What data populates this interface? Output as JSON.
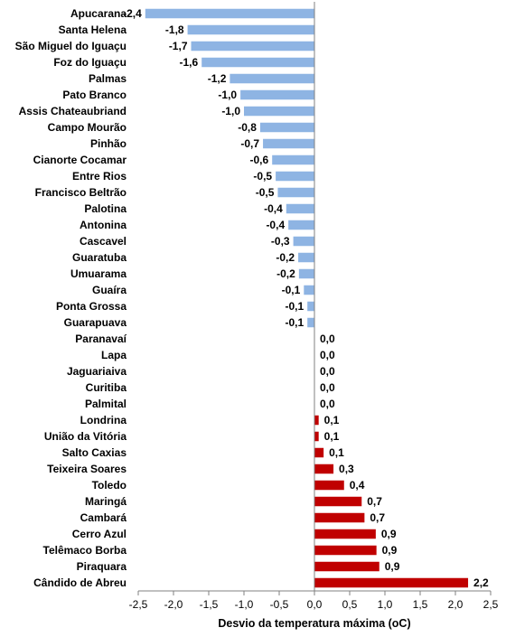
{
  "chart_data": {
    "type": "bar",
    "orientation": "horizontal",
    "xlabel": "Desvio da temperatura máxima (oC)",
    "xlim": [
      -2.5,
      2.5
    ],
    "xticks": [
      "-2,5",
      "-2,0",
      "-1,5",
      "-1,0",
      "-0,5",
      "0,0",
      "0,5",
      "1,0",
      "1,5",
      "2,0",
      "2,5"
    ],
    "grid": false,
    "legend": false,
    "colors": {
      "negative": "#8eb4e3",
      "positive": "#c00000"
    },
    "categories": [
      "Apucarana",
      "Santa Helena",
      "São Miguel do Iguaçu",
      "Foz do Iguaçu",
      "Palmas",
      "Pato Branco",
      "Assis Chateaubriand",
      "Campo Mourão",
      "Pinhão",
      "Cianorte Cocamar",
      "Entre Rios",
      "Francisco Beltrão",
      "Palotina",
      "Antonina",
      "Cascavel",
      "Guaratuba",
      "Umuarama",
      "Guaíra",
      "Ponta Grossa",
      "Guarapuava",
      "Paranavaí",
      "Lapa",
      "Jaguariaiva",
      "Curitiba",
      "Palmital",
      "Londrina",
      "União da Vitória",
      "Salto Caxias",
      "Teixeira Soares",
      "Toledo",
      "Maringá",
      "Cambará",
      "Cerro Azul",
      "Telêmaco Borba",
      "Piraquara",
      "Cândido de Abreu"
    ],
    "values": [
      -2.4,
      -1.8,
      -1.75,
      -1.6,
      -1.2,
      -1.05,
      -1.0,
      -0.77,
      -0.73,
      -0.6,
      -0.55,
      -0.52,
      -0.4,
      -0.37,
      -0.3,
      -0.23,
      -0.22,
      -0.15,
      -0.1,
      -0.1,
      0.0,
      0.0,
      0.0,
      0.0,
      0.0,
      0.06,
      0.06,
      0.13,
      0.27,
      0.42,
      0.67,
      0.71,
      0.87,
      0.88,
      0.92,
      2.18
    ],
    "value_labels": [
      "-2,4",
      "-1,8",
      "-1,7",
      "-1,6",
      "-1,2",
      "-1,0",
      "-1,0",
      "-0,8",
      "-0,7",
      "-0,6",
      "-0,5",
      "-0,5",
      "-0,4",
      "-0,4",
      "-0,3",
      "-0,2",
      "-0,2",
      "-0,1",
      "-0,1",
      "-0,1",
      "0,0",
      "0,0",
      "0,0",
      "0,0",
      "0,0",
      "0,1",
      "0,1",
      "0,1",
      "0,3",
      "0,4",
      "0,7",
      "0,7",
      "0,9",
      "0,9",
      "0,9",
      "2,2"
    ]
  }
}
